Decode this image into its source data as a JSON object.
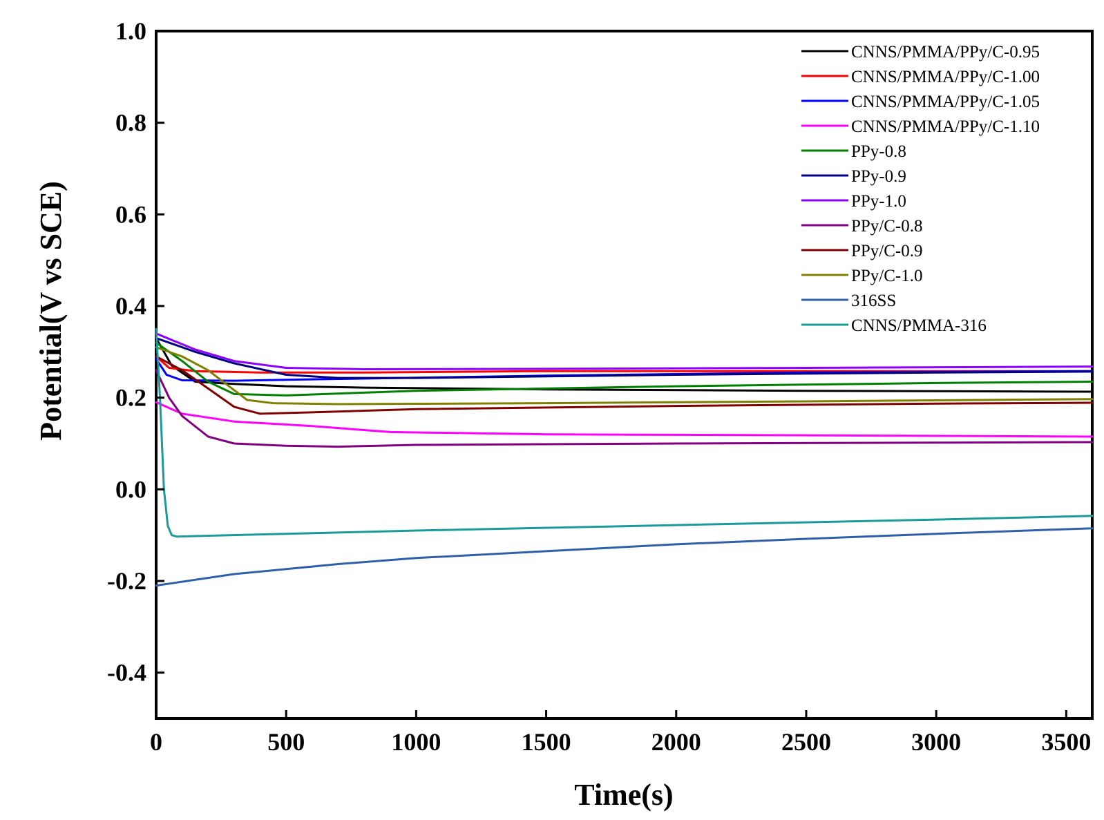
{
  "chart_data": {
    "type": "line",
    "title": "",
    "xlabel": "Time(s)",
    "ylabel": "Potential(V vs SCE)",
    "xlim": [
      0,
      3600
    ],
    "ylim": [
      -0.5,
      1.0
    ],
    "xticks": [
      0,
      500,
      1000,
      1500,
      2000,
      2500,
      3000,
      3500
    ],
    "yticks": [
      -0.4,
      -0.2,
      0.0,
      0.2,
      0.4,
      0.6,
      0.8,
      1.0
    ],
    "xtick_labels": [
      "0",
      "500",
      "1000",
      "1500",
      "2000",
      "2500",
      "3000",
      "3500"
    ],
    "ytick_labels": [
      "-0.4",
      "-0.2",
      "0.0",
      "0.2",
      "0.4",
      "0.6",
      "0.8",
      "1.0"
    ],
    "grid": false,
    "legend_position": "top-right",
    "series": [
      {
        "name": "CNNS/PMMA/PPy/C-0.95",
        "color": "#000000",
        "x": [
          0,
          60,
          150,
          300,
          500,
          800,
          1500,
          2500,
          3600
        ],
        "y": [
          0.33,
          0.27,
          0.235,
          0.23,
          0.225,
          0.222,
          0.218,
          0.215,
          0.213
        ]
      },
      {
        "name": "CNNS/PMMA/PPy/C-1.00",
        "color": "#ff0000",
        "x": [
          0,
          50,
          150,
          400,
          800,
          1500,
          2500,
          3600
        ],
        "y": [
          0.29,
          0.265,
          0.258,
          0.255,
          0.255,
          0.258,
          0.258,
          0.258
        ]
      },
      {
        "name": "CNNS/PMMA/PPy/C-1.05",
        "color": "#0000ff",
        "x": [
          0,
          40,
          100,
          300,
          600,
          1500,
          2500,
          3600
        ],
        "y": [
          0.285,
          0.25,
          0.238,
          0.237,
          0.24,
          0.248,
          0.255,
          0.258
        ]
      },
      {
        "name": "CNNS/PMMA/PPy/C-1.10",
        "color": "#ff00ff",
        "x": [
          0,
          100,
          300,
          600,
          900,
          1500,
          2500,
          3600
        ],
        "y": [
          0.19,
          0.165,
          0.148,
          0.138,
          0.125,
          0.12,
          0.118,
          0.115
        ]
      },
      {
        "name": "PPy-0.8",
        "color": "#008000",
        "x": [
          0,
          100,
          200,
          300,
          500,
          1000,
          2000,
          3000,
          3600
        ],
        "y": [
          0.32,
          0.28,
          0.235,
          0.208,
          0.205,
          0.215,
          0.225,
          0.232,
          0.235
        ]
      },
      {
        "name": "PPy-0.9",
        "color": "#000080",
        "x": [
          0,
          150,
          300,
          500,
          700,
          1000,
          2000,
          3000,
          3600
        ],
        "y": [
          0.33,
          0.3,
          0.275,
          0.25,
          0.243,
          0.243,
          0.25,
          0.255,
          0.257
        ]
      },
      {
        "name": "PPy-1.0",
        "color": "#8b00ff",
        "x": [
          0,
          150,
          300,
          500,
          800,
          1500,
          2500,
          3600
        ],
        "y": [
          0.34,
          0.305,
          0.28,
          0.265,
          0.262,
          0.263,
          0.265,
          0.268
        ]
      },
      {
        "name": "PPy/C-0.8",
        "color": "#800080",
        "x": [
          0,
          50,
          100,
          200,
          300,
          500,
          700,
          1000,
          2000,
          3000,
          3600
        ],
        "y": [
          0.26,
          0.2,
          0.16,
          0.115,
          0.1,
          0.095,
          0.093,
          0.097,
          0.1,
          0.102,
          0.103
        ]
      },
      {
        "name": "PPy/C-0.9",
        "color": "#800000",
        "x": [
          0,
          100,
          200,
          300,
          400,
          600,
          1000,
          2000,
          3000,
          3600
        ],
        "y": [
          0.29,
          0.26,
          0.22,
          0.18,
          0.165,
          0.168,
          0.175,
          0.182,
          0.187,
          0.189
        ]
      },
      {
        "name": "PPy/C-1.0",
        "color": "#808000",
        "x": [
          0,
          100,
          200,
          280,
          350,
          450,
          700,
          1500,
          2500,
          3600
        ],
        "y": [
          0.31,
          0.29,
          0.26,
          0.225,
          0.195,
          0.188,
          0.186,
          0.188,
          0.192,
          0.197
        ]
      },
      {
        "name": "316SS",
        "color": "#2f5fa8",
        "x": [
          0,
          300,
          700,
          1000,
          1500,
          2000,
          2500,
          3000,
          3600
        ],
        "y": [
          -0.21,
          -0.185,
          -0.163,
          -0.15,
          -0.135,
          -0.12,
          -0.108,
          -0.097,
          -0.085
        ]
      },
      {
        "name": "CNNS/PMMA-316",
        "color": "#1a9a9a",
        "x": [
          0,
          15,
          30,
          45,
          60,
          80,
          150,
          500,
          1000,
          2000,
          3000,
          3600
        ],
        "y": [
          0.35,
          0.2,
          0.0,
          -0.08,
          -0.1,
          -0.103,
          -0.102,
          -0.097,
          -0.09,
          -0.078,
          -0.066,
          -0.058
        ]
      }
    ]
  }
}
